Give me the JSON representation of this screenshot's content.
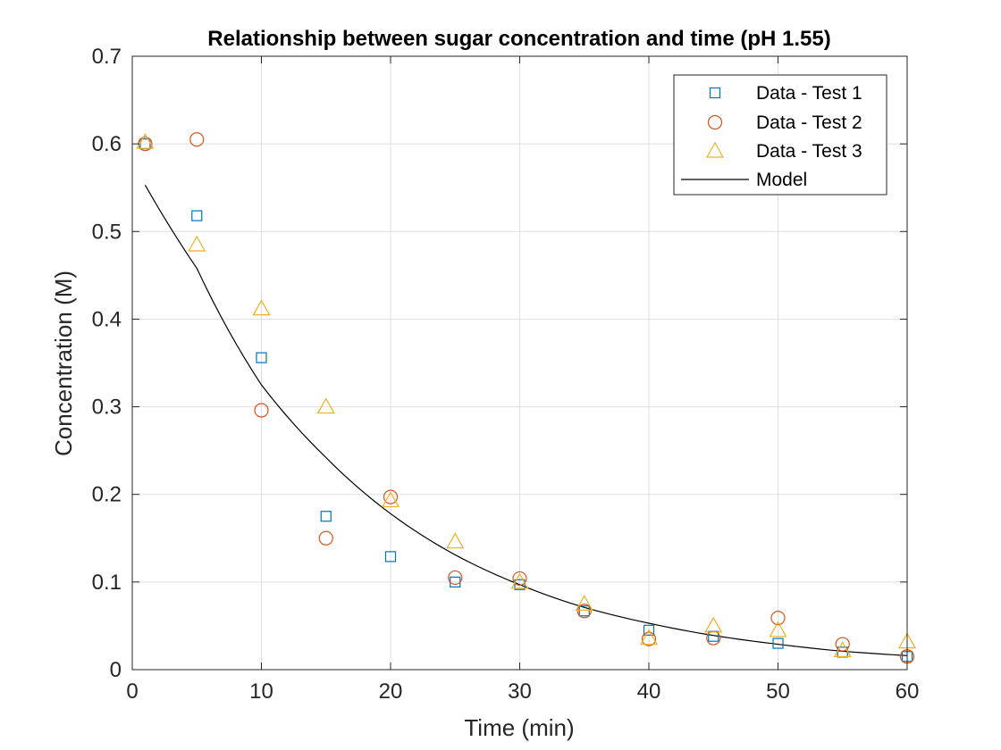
{
  "chart_data": {
    "type": "scatter",
    "title": "Relationship between sugar concentration and time (pH 1.55)",
    "xlabel": "Time (min)",
    "ylabel": "Concentration (M)",
    "xlim": [
      0,
      60
    ],
    "ylim": [
      0,
      0.7
    ],
    "xticks": [
      "0",
      "10",
      "20",
      "30",
      "40",
      "50",
      "60"
    ],
    "yticks": [
      "0",
      "0.1",
      "0.2",
      "0.3",
      "0.4",
      "0.5",
      "0.6",
      "0.7"
    ],
    "grid": true,
    "legend_position": "top-right",
    "series": [
      {
        "name": "Data - Test 1",
        "marker": "square",
        "color": "#0072BD",
        "x": [
          1,
          5,
          10,
          15,
          20,
          25,
          30,
          35,
          40,
          45,
          50,
          55,
          60
        ],
        "y": [
          0.6,
          0.518,
          0.356,
          0.175,
          0.129,
          0.1,
          0.097,
          0.067,
          0.045,
          0.038,
          0.03,
          0.02,
          0.015
        ]
      },
      {
        "name": "Data - Test 2",
        "marker": "circle",
        "color": "#D95319",
        "x": [
          1,
          5,
          10,
          15,
          20,
          25,
          30,
          35,
          40,
          45,
          50,
          55,
          60
        ],
        "y": [
          0.6,
          0.605,
          0.296,
          0.15,
          0.197,
          0.105,
          0.104,
          0.067,
          0.035,
          0.036,
          0.059,
          0.029,
          0.015
        ]
      },
      {
        "name": "Data - Test 3",
        "marker": "triangle",
        "color": "#EDB120",
        "x": [
          1,
          5,
          10,
          15,
          20,
          25,
          30,
          35,
          40,
          45,
          50,
          55,
          60
        ],
        "y": [
          0.602,
          0.485,
          0.412,
          0.3,
          0.193,
          0.146,
          0.1,
          0.075,
          0.036,
          0.05,
          0.045,
          0.022,
          0.032
        ]
      },
      {
        "name": "Model",
        "marker": "line",
        "color": "#000000",
        "x": [
          1,
          5,
          10,
          15,
          20,
          25,
          30,
          35,
          40,
          45,
          50,
          55,
          60
        ],
        "y": [
          0.553,
          0.458,
          0.325,
          0.242,
          0.178,
          0.131,
          0.097,
          0.071,
          0.053,
          0.039,
          0.029,
          0.021,
          0.016
        ]
      }
    ]
  }
}
